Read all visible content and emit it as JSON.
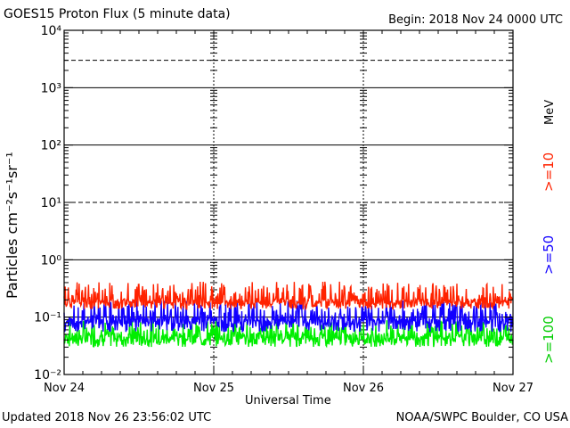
{
  "header": {
    "title": "GOES15 Proton Flux (5 minute data)",
    "begin": "Begin: 2018 Nov 24 0000 UTC"
  },
  "footer": {
    "updated": "Updated 2018 Nov 26 23:56:02 UTC",
    "credit": "NOAA/SWPC Boulder, CO USA"
  },
  "colors": {
    "ge10": "#ff2200",
    "ge50": "#1100ff",
    "ge100": "#00ee00"
  },
  "chart_data": {
    "type": "line",
    "title": "GOES15 Proton Flux (5 minute data)",
    "xlabel": "Universal Time",
    "ylabel": "Particles cm⁻²s⁻¹sr⁻¹",
    "y_scale": "log",
    "ylim": [
      0.01,
      10000
    ],
    "y_tick_labels": [
      "10⁻²",
      "10⁻¹",
      "10⁰",
      "10¹",
      "10²",
      "10³",
      "10⁴"
    ],
    "x_tick_labels": [
      "Nov 24",
      "Nov 25",
      "Nov 26",
      "Nov 27"
    ],
    "xlim_days": [
      0,
      3
    ],
    "grid": "horizontal lines at decades; dashed at 10¹ and above 10³",
    "legend": {
      "placement": "right",
      "unit": "MeV",
      "entries": [
        ">=10",
        ">=50",
        ">=100"
      ]
    },
    "series": [
      {
        "name": ">=10",
        "baseline": 0.17,
        "range": [
          0.12,
          0.42
        ]
      },
      {
        "name": ">=50",
        "baseline": 0.075,
        "range": [
          0.045,
          0.2
        ]
      },
      {
        "name": ">=100",
        "baseline": 0.04,
        "range": [
          0.025,
          0.09
        ]
      }
    ]
  }
}
